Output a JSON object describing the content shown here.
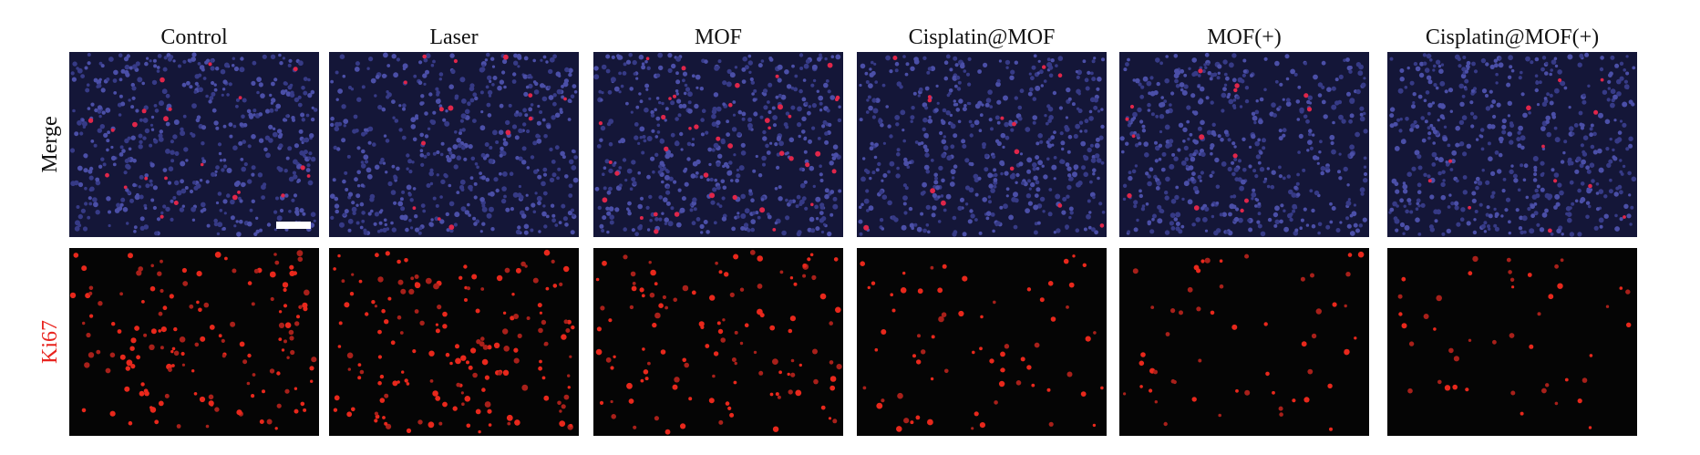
{
  "columns": [
    "Control",
    "Laser",
    "MOF",
    "Cisplatin@MOF",
    "MOF(+)",
    "Cisplatin@MOF(+)"
  ],
  "rows": [
    "Merge",
    "Ki67"
  ]
}
